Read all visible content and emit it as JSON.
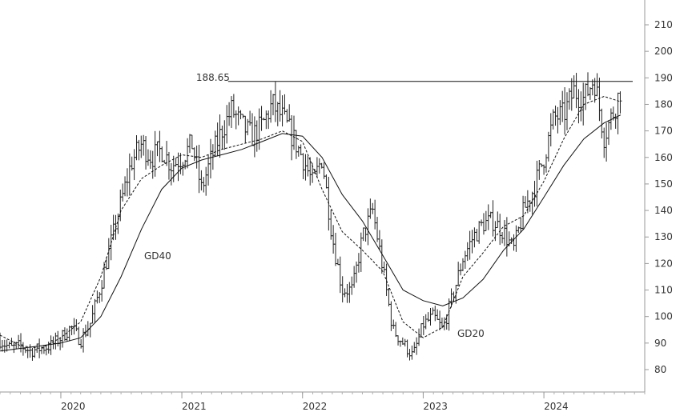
{
  "chart_data": {
    "type": "ohlc",
    "title": "",
    "xlabel": "",
    "ylabel": "",
    "x_range": [
      "2019-07-01",
      "2024-11-01"
    ],
    "ylim": [
      70,
      220
    ],
    "y_ticks": [
      80,
      90,
      100,
      110,
      120,
      130,
      140,
      150,
      160,
      170,
      180,
      190,
      200,
      210
    ],
    "x_ticks": [
      {
        "label": "2020",
        "date": "2020-01-01"
      },
      {
        "label": "2021",
        "date": "2021-01-01"
      },
      {
        "label": "2022",
        "date": "2022-01-01"
      },
      {
        "label": "2023",
        "date": "2023-01-01"
      },
      {
        "label": "2024",
        "date": "2024-01-01"
      }
    ],
    "grid": false,
    "y_axis_position": "right",
    "resistance_line": {
      "value": 188.65,
      "label": "188.65",
      "from": "2021-05-21"
    },
    "series": [
      {
        "name": "GD20",
        "style": "dashed",
        "label": "GD20",
        "points": [
          [
            "2019-07-01",
            93
          ],
          [
            "2019-09-01",
            89
          ],
          [
            "2019-11-01",
            88
          ],
          [
            "2020-01-01",
            92
          ],
          [
            "2020-03-01",
            98
          ],
          [
            "2020-05-01",
            115
          ],
          [
            "2020-07-01",
            140
          ],
          [
            "2020-09-01",
            152
          ],
          [
            "2020-11-01",
            157
          ],
          [
            "2021-01-01",
            161
          ],
          [
            "2021-03-01",
            160
          ],
          [
            "2021-05-01",
            163
          ],
          [
            "2021-07-01",
            165
          ],
          [
            "2021-09-01",
            167
          ],
          [
            "2021-11-01",
            170
          ],
          [
            "2022-01-01",
            166
          ],
          [
            "2022-03-01",
            148
          ],
          [
            "2022-05-01",
            132
          ],
          [
            "2022-07-01",
            125
          ],
          [
            "2022-09-01",
            117
          ],
          [
            "2022-11-01",
            98
          ],
          [
            "2023-01-01",
            92
          ],
          [
            "2023-03-01",
            96
          ],
          [
            "2023-05-01",
            115
          ],
          [
            "2023-07-01",
            124
          ],
          [
            "2023-09-01",
            134
          ],
          [
            "2023-11-01",
            138
          ],
          [
            "2024-01-01",
            151
          ],
          [
            "2024-03-01",
            167
          ],
          [
            "2024-05-01",
            180
          ],
          [
            "2024-07-01",
            183
          ],
          [
            "2024-08-20",
            181
          ]
        ]
      },
      {
        "name": "GD40",
        "style": "solid",
        "label": "GD40",
        "points": [
          [
            "2019-07-01",
            87
          ],
          [
            "2019-09-01",
            88
          ],
          [
            "2019-11-01",
            89
          ],
          [
            "2020-01-01",
            90
          ],
          [
            "2020-03-01",
            92
          ],
          [
            "2020-05-01",
            100
          ],
          [
            "2020-07-01",
            115
          ],
          [
            "2020-09-01",
            133
          ],
          [
            "2020-11-01",
            148
          ],
          [
            "2021-01-01",
            156
          ],
          [
            "2021-03-01",
            159
          ],
          [
            "2021-05-01",
            161
          ],
          [
            "2021-07-01",
            163
          ],
          [
            "2021-09-01",
            166
          ],
          [
            "2021-11-01",
            169
          ],
          [
            "2022-01-01",
            168
          ],
          [
            "2022-03-01",
            160
          ],
          [
            "2022-05-01",
            146
          ],
          [
            "2022-07-01",
            136
          ],
          [
            "2022-09-01",
            123
          ],
          [
            "2022-11-01",
            110
          ],
          [
            "2023-01-01",
            106
          ],
          [
            "2023-03-01",
            104
          ],
          [
            "2023-05-01",
            107
          ],
          [
            "2023-07-01",
            114
          ],
          [
            "2023-09-01",
            125
          ],
          [
            "2023-11-01",
            133
          ],
          [
            "2024-01-01",
            145
          ],
          [
            "2024-03-01",
            157
          ],
          [
            "2024-05-01",
            167
          ],
          [
            "2024-07-01",
            173
          ],
          [
            "2024-08-20",
            176
          ]
        ]
      },
      {
        "name": "",
        "style": "ohlc",
        "points": [
          [
            "2019-07-01",
            91
          ],
          [
            "2019-08-01",
            88
          ],
          [
            "2019-09-01",
            89
          ],
          [
            "2019-10-01",
            87
          ],
          [
            "2019-11-01",
            88
          ],
          [
            "2019-12-01",
            89
          ],
          [
            "2020-01-01",
            92
          ],
          [
            "2020-02-01",
            96
          ],
          [
            "2020-03-01",
            91
          ],
          [
            "2020-04-01",
            98
          ],
          [
            "2020-05-01",
            112
          ],
          [
            "2020-06-01",
            128
          ],
          [
            "2020-07-01",
            143
          ],
          [
            "2020-08-01",
            158
          ],
          [
            "2020-09-01",
            165
          ],
          [
            "2020-10-01",
            160
          ],
          [
            "2020-11-01",
            163
          ],
          [
            "2020-12-01",
            157
          ],
          [
            "2021-01-01",
            160
          ],
          [
            "2021-02-01",
            165
          ],
          [
            "2021-03-01",
            148
          ],
          [
            "2021-04-01",
            160
          ],
          [
            "2021-05-01",
            170
          ],
          [
            "2021-06-01",
            178
          ],
          [
            "2021-07-01",
            172
          ],
          [
            "2021-08-01",
            168
          ],
          [
            "2021-09-01",
            172
          ],
          [
            "2021-10-01",
            180
          ],
          [
            "2021-11-01",
            175
          ],
          [
            "2021-12-01",
            168
          ],
          [
            "2022-01-01",
            160
          ],
          [
            "2022-02-01",
            150
          ],
          [
            "2022-03-01",
            160
          ],
          [
            "2022-04-01",
            130
          ],
          [
            "2022-05-01",
            110
          ],
          [
            "2022-06-01",
            110
          ],
          [
            "2022-07-01",
            130
          ],
          [
            "2022-08-01",
            140
          ],
          [
            "2022-09-01",
            118
          ],
          [
            "2022-10-01",
            95
          ],
          [
            "2022-11-01",
            90
          ],
          [
            "2022-12-01",
            85
          ],
          [
            "2023-01-01",
            97
          ],
          [
            "2023-02-01",
            100
          ],
          [
            "2023-03-01",
            95
          ],
          [
            "2023-04-01",
            108
          ],
          [
            "2023-05-01",
            122
          ],
          [
            "2023-06-01",
            130
          ],
          [
            "2023-07-01",
            135
          ],
          [
            "2023-08-01",
            136
          ],
          [
            "2023-09-01",
            132
          ],
          [
            "2023-10-01",
            125
          ],
          [
            "2023-11-01",
            140
          ],
          [
            "2023-12-01",
            148
          ],
          [
            "2024-01-01",
            160
          ],
          [
            "2024-02-01",
            175
          ],
          [
            "2024-03-01",
            176
          ],
          [
            "2024-04-01",
            185
          ],
          [
            "2024-05-01",
            182
          ],
          [
            "2024-06-01",
            190
          ],
          [
            "2024-07-01",
            168
          ],
          [
            "2024-08-01",
            178
          ],
          [
            "2024-08-20",
            186
          ]
        ]
      }
    ]
  }
}
